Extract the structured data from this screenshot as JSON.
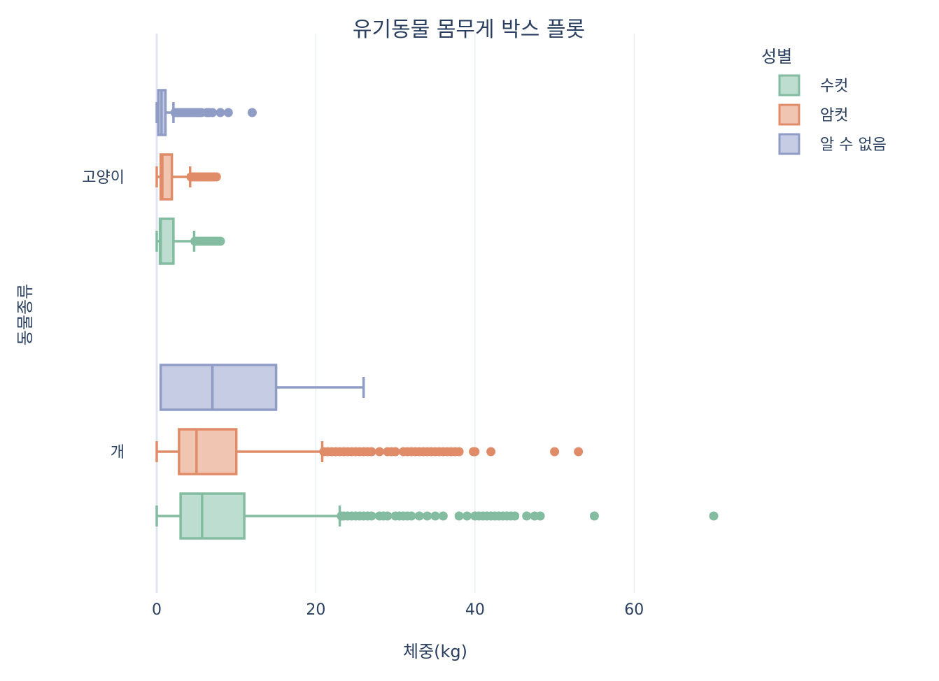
{
  "chart_data": {
    "type": "box",
    "orientation": "horizontal",
    "title": "유기동물 몸무게 박스 플롯",
    "xlabel": "체중(kg)",
    "ylabel": "동물종류",
    "xlim": [
      0,
      70
    ],
    "xticks": [
      0,
      20,
      40,
      60
    ],
    "categories": [
      "고양이",
      "개"
    ],
    "legend": {
      "title": "성별",
      "position": "top-right"
    },
    "grid": true,
    "series": [
      {
        "name": "수컷",
        "line_color": "#83bca0",
        "fill_color": "#bcddd0",
        "boxes": [
          {
            "category": "고양이",
            "lower_fence": 0,
            "q1": 0.4,
            "median": 0.5,
            "q3": 2.1,
            "upper_fence": 4.7,
            "outliers": [
              4.8,
              5.0,
              5.3,
              5.6,
              5.9,
              6.2,
              6.5,
              6.8,
              7.1,
              7.4,
              7.7,
              8.0
            ]
          },
          {
            "category": "개",
            "lower_fence": 0,
            "q1": 3.0,
            "median": 5.7,
            "q3": 11.0,
            "upper_fence": 23.0,
            "outliers": [
              23.2,
              23.5,
              24,
              24.5,
              25,
              25.5,
              26,
              26.5,
              27,
              28,
              28.5,
              29,
              30,
              30.5,
              31,
              31.5,
              32,
              33,
              34,
              35,
              36,
              38,
              39,
              40,
              40.5,
              41,
              41.5,
              42,
              42.5,
              43,
              43.5,
              44,
              44.5,
              45,
              46.5,
              47.5,
              48.2,
              55,
              70
            ]
          }
        ]
      },
      {
        "name": "암컷",
        "line_color": "#e08c68",
        "fill_color": "#f0c6b3",
        "boxes": [
          {
            "category": "고양이",
            "lower_fence": 0,
            "q1": 0.5,
            "median": 0.7,
            "q3": 1.9,
            "upper_fence": 4.2,
            "outliers": [
              4.3,
              4.5,
              4.8,
              5.1,
              5.4,
              5.7,
              6.0,
              6.3,
              6.6,
              6.9,
              7.2,
              7.5
            ]
          },
          {
            "category": "개",
            "lower_fence": 0,
            "q1": 2.8,
            "median": 5.0,
            "q3": 10.0,
            "upper_fence": 20.8,
            "outliers": [
              21,
              21.5,
              22,
              22.5,
              23,
              23.5,
              24,
              24.5,
              25,
              25.5,
              26,
              26.5,
              27,
              28,
              29,
              29.5,
              30,
              31,
              31.5,
              32,
              32.5,
              33,
              33.5,
              34,
              34.5,
              35,
              35.5,
              36,
              36.5,
              37,
              37.5,
              38,
              39.8,
              40,
              42,
              50,
              53
            ]
          }
        ]
      },
      {
        "name": "알 수 없음",
        "line_color": "#8f9cc6",
        "fill_color": "#c6cce3",
        "boxes": [
          {
            "category": "고양이",
            "lower_fence": 0,
            "q1": 0.2,
            "median": 0.6,
            "q3": 1.1,
            "upper_fence": 2.1,
            "outliers": [
              2.3,
              2.6,
              2.9,
              3.2,
              3.5,
              3.8,
              4.1,
              4.4,
              4.7,
              5.0,
              5.3,
              5.6,
              6.3,
              6.6,
              7.0,
              8.0,
              9.0,
              12.0
            ]
          },
          {
            "category": "개",
            "lower_fence": 0.5,
            "q1": 0.5,
            "median": 7.0,
            "q3": 15.0,
            "upper_fence": 26.0,
            "outliers": []
          }
        ]
      }
    ]
  }
}
